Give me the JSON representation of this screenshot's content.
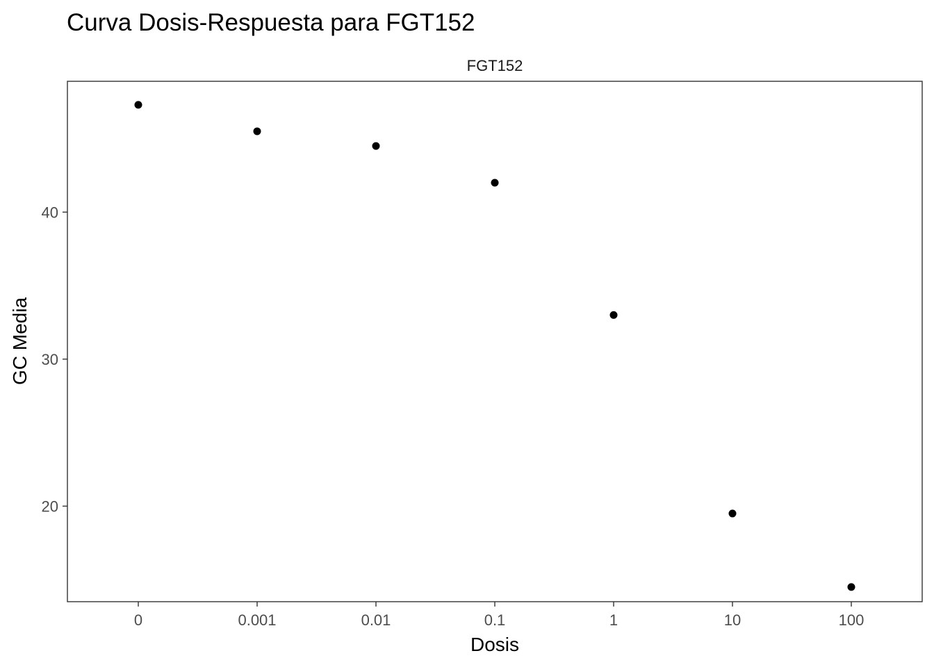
{
  "chart_data": {
    "type": "scatter",
    "title": "Curva Dosis-Respuesta para FGT152",
    "facet_label": "FGT152",
    "xlabel": "Dosis",
    "ylabel": "GC Media",
    "x_scale": "categorical",
    "categories": [
      "0",
      "0.001",
      "0.01",
      "0.1",
      "1",
      "10",
      "100"
    ],
    "values": [
      47.3,
      45.5,
      44.5,
      42.0,
      33.0,
      19.5,
      14.5
    ],
    "ylim": [
      13.5,
      48.9
    ],
    "y_ticks": [
      20,
      30,
      40
    ],
    "grid": false,
    "point_color": "#000000"
  }
}
